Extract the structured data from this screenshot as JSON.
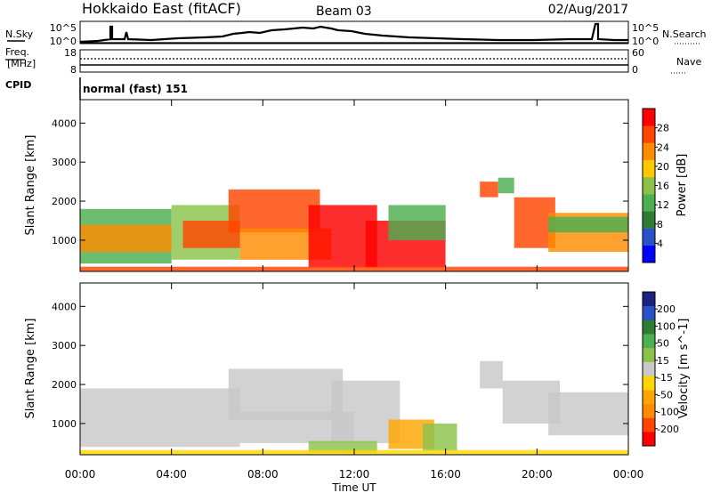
{
  "header": {
    "station": "Hokkaido East (fitACF)",
    "beam": "Beam 03",
    "date": "02/Aug/2017"
  },
  "top_panels": {
    "nsky_label": "N.Sky",
    "nsky_ticks": [
      "10^5",
      "10^0"
    ],
    "nsearch_label": "N.Search",
    "freq_label_1": "Freq.",
    "freq_label_2": "[MHz]",
    "freq_ticks": [
      "18",
      "8"
    ],
    "nave_label": "Nave",
    "nave_ticks": [
      "60",
      "0"
    ],
    "cpid_label": "CPID",
    "cpid_value": "normal (fast) 151"
  },
  "axes": {
    "xlabel": "Time UT",
    "ylabel": "Slant Range [km]",
    "x_ticks": [
      "00:00",
      "04:00",
      "08:00",
      "12:00",
      "16:00",
      "20:00",
      "00:00"
    ],
    "y_ticks": [
      "1000",
      "2000",
      "3000",
      "4000"
    ]
  },
  "colors": {
    "power": [
      "#0000ff",
      "#2a52c8",
      "#2e7d32",
      "#4caf50",
      "#8bc34a",
      "#ffc800",
      "#ff8c00",
      "#ff4500",
      "#ff0000"
    ],
    "velocity": [
      "#ff0000",
      "#ff4500",
      "#ff8c00",
      "#ffa500",
      "#ffd700",
      "#c8c8c8",
      "#8bc34a",
      "#4caf50",
      "#2e7d32",
      "#2a52c8",
      "#1a237e"
    ]
  },
  "chart_data": [
    {
      "type": "heatmap",
      "title": "",
      "xlabel": "Time UT",
      "ylabel": "Slant Range [km]",
      "xlim_hours": [
        0,
        24
      ],
      "ylim": [
        200,
        4600
      ],
      "colorbar": {
        "label": "Power [dB]",
        "range": [
          0,
          32
        ],
        "ticks": [
          "4",
          "8",
          "12",
          "16",
          "20",
          "24",
          "28"
        ]
      },
      "regions": [
        {
          "t0": 0.0,
          "t1": 4.0,
          "r0": 400,
          "r1": 1800,
          "value": 14
        },
        {
          "t0": 0.0,
          "t1": 4.0,
          "r0": 700,
          "r1": 1400,
          "value": 22
        },
        {
          "t0": 4.0,
          "t1": 7.0,
          "r0": 500,
          "r1": 1900,
          "value": 15
        },
        {
          "t0": 4.5,
          "t1": 7.0,
          "r0": 800,
          "r1": 1500,
          "value": 25
        },
        {
          "t0": 6.5,
          "t1": 10.5,
          "r0": 1200,
          "r1": 2300,
          "value": 28
        },
        {
          "t0": 7.0,
          "t1": 11.0,
          "r0": 500,
          "r1": 1300,
          "value": 24
        },
        {
          "t0": 10.0,
          "t1": 13.0,
          "r0": 300,
          "r1": 1900,
          "value": 29
        },
        {
          "t0": 12.5,
          "t1": 16.0,
          "r0": 300,
          "r1": 1500,
          "value": 30
        },
        {
          "t0": 13.5,
          "t1": 16.0,
          "r0": 1000,
          "r1": 1900,
          "value": 14
        },
        {
          "t0": 17.5,
          "t1": 18.3,
          "r0": 2100,
          "r1": 2500,
          "value": 28
        },
        {
          "t0": 18.3,
          "t1": 19.0,
          "r0": 2200,
          "r1": 2600,
          "value": 14
        },
        {
          "t0": 19.0,
          "t1": 20.8,
          "r0": 800,
          "r1": 2100,
          "value": 28
        },
        {
          "t0": 20.5,
          "t1": 24.0,
          "r0": 700,
          "r1": 1700,
          "value": 22
        },
        {
          "t0": 20.5,
          "t1": 24.0,
          "r0": 1200,
          "r1": 1600,
          "value": 12
        },
        {
          "t0": 0.0,
          "t1": 24.0,
          "r0": 200,
          "r1": 320,
          "value": 26
        }
      ]
    },
    {
      "type": "heatmap",
      "title": "",
      "xlabel": "Time UT",
      "ylabel": "Slant Range [km]",
      "xlim_hours": [
        0,
        24
      ],
      "ylim": [
        200,
        4600
      ],
      "colorbar": {
        "label": "Velocity [m s^-1]",
        "range": [
          -250,
          250
        ],
        "ticks": [
          "200",
          "100",
          "50",
          "15",
          "-15",
          "-50",
          "-100",
          "-200"
        ]
      },
      "regions": [
        {
          "t0": 0.0,
          "t1": 7.0,
          "r0": 400,
          "r1": 1900,
          "value": 0
        },
        {
          "t0": 6.5,
          "t1": 11.5,
          "r0": 1100,
          "r1": 2400,
          "value": 0
        },
        {
          "t0": 7.0,
          "t1": 12.0,
          "r0": 500,
          "r1": 1300,
          "value": 0
        },
        {
          "t0": 11.0,
          "t1": 14.0,
          "r0": 500,
          "r1": 2100,
          "value": 0
        },
        {
          "t0": 13.5,
          "t1": 15.5,
          "r0": 350,
          "r1": 1100,
          "value": -80
        },
        {
          "t0": 15.0,
          "t1": 16.5,
          "r0": 300,
          "r1": 1000,
          "value": 60
        },
        {
          "t0": 10.0,
          "t1": 13.0,
          "r0": 250,
          "r1": 550,
          "value": 40
        },
        {
          "t0": 17.5,
          "t1": 18.5,
          "r0": 1900,
          "r1": 2600,
          "value": 0
        },
        {
          "t0": 18.5,
          "t1": 21.0,
          "r0": 1000,
          "r1": 2100,
          "value": 0
        },
        {
          "t0": 20.5,
          "t1": 24.0,
          "r0": 700,
          "r1": 1800,
          "value": 0
        },
        {
          "t0": 0.0,
          "t1": 24.0,
          "r0": 200,
          "r1": 320,
          "value": -40
        }
      ]
    }
  ]
}
